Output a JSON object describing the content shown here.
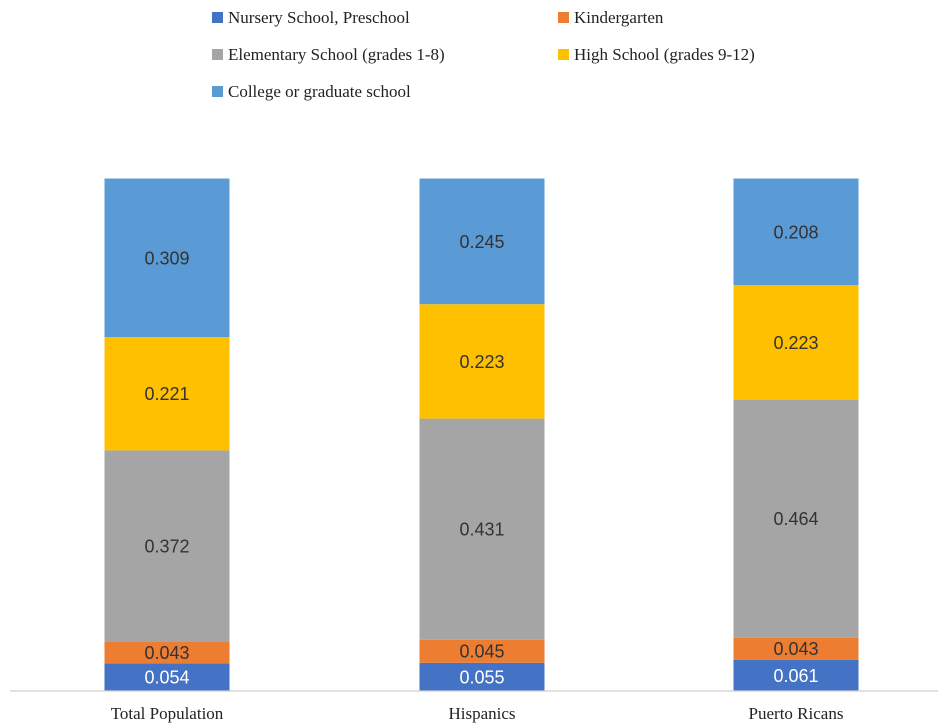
{
  "chart_data": {
    "type": "bar",
    "stacked": true,
    "categories": [
      "Total Population",
      "Hispanics",
      "Puerto Ricans"
    ],
    "series": [
      {
        "name": "Nursery School, Preschool",
        "values": [
          0.054,
          0.055,
          0.061
        ],
        "color": "#4472C4",
        "label_color": "#ffffff"
      },
      {
        "name": "Kindergarten",
        "values": [
          0.043,
          0.045,
          0.043
        ],
        "color": "#ED7D31",
        "label_color": "#333333"
      },
      {
        "name": "Elementary School (grades 1-8)",
        "values": [
          0.372,
          0.431,
          0.464
        ],
        "color": "#A5A5A5",
        "label_color": "#333333"
      },
      {
        "name": "High School (grades 9-12)",
        "values": [
          0.221,
          0.223,
          0.223
        ],
        "color": "#FFC000",
        "label_color": "#333333"
      },
      {
        "name": "College or graduate school",
        "values": [
          0.309,
          0.245,
          0.208
        ],
        "color": "#5B9BD5",
        "label_color": "#333333"
      }
    ],
    "ylim": [
      0,
      1
    ],
    "legend_position": "top",
    "grid": false
  }
}
